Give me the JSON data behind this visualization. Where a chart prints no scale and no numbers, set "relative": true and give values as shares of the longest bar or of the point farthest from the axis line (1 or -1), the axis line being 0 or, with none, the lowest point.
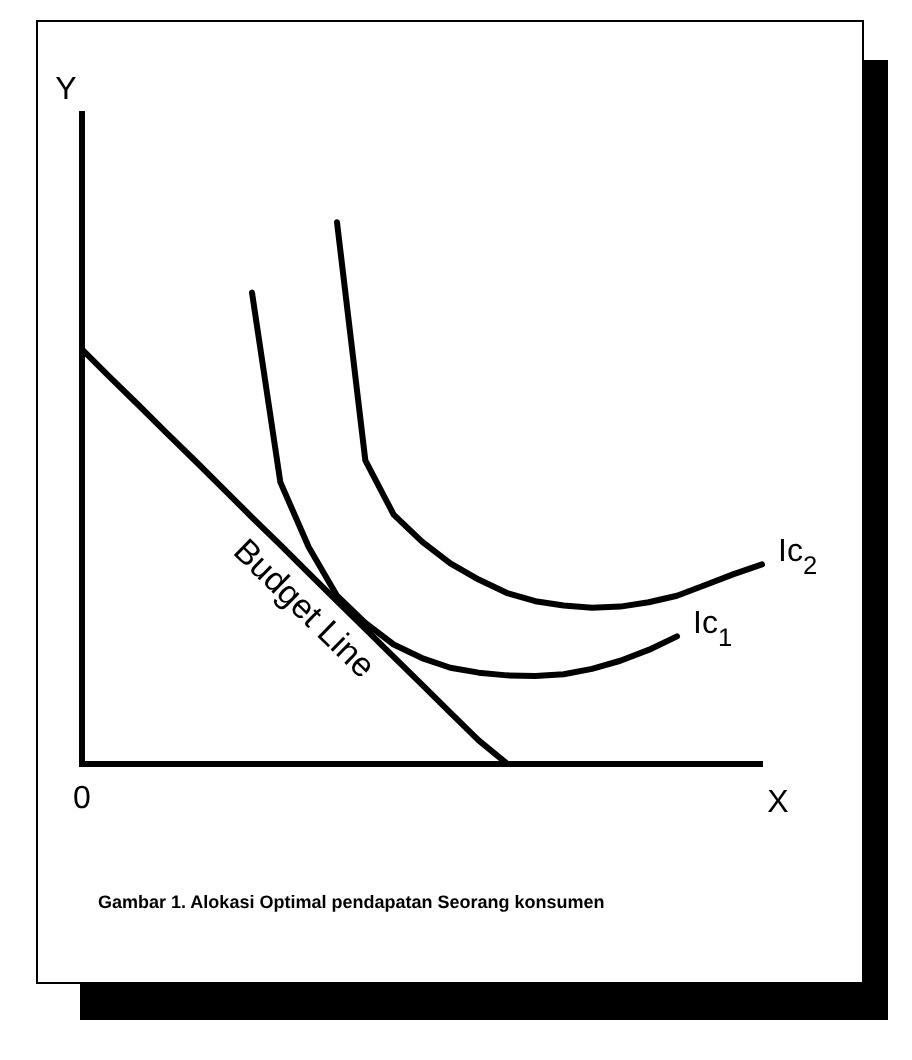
{
  "chart_data": {
    "type": "line",
    "relative": true,
    "xlabel": "X",
    "ylabel": "Y",
    "legend": false,
    "marker": "none",
    "line_style": "solid",
    "annotations": [
      "0",
      "Gambar 1. Alokasi Optimal pendapatan Seorang konsumen"
    ],
    "categories": [
      null,
      null,
      null,
      null,
      null,
      null,
      null,
      null,
      null,
      null,
      null,
      null,
      null,
      null,
      null,
      null,
      null,
      null,
      null,
      null,
      null,
      null,
      null,
      null,
      null
    ],
    "series": [
      {
        "name": "Budget Line",
        "color": "#000000",
        "values": [
          0.765,
          0.713,
          0.662,
          0.61,
          0.559,
          0.507,
          0.455,
          0.404,
          0.352,
          0.3,
          0.249,
          0.197,
          0.146,
          0.094,
          0.043,
          0,
          null,
          null,
          null,
          null,
          null,
          null,
          null,
          null,
          null
        ]
      },
      {
        "name": "Ic$_{1}$",
        "color": "#000000",
        "values": [
          null,
          null,
          null,
          null,
          null,
          null,
          0.87,
          0.52,
          0.4,
          0.31,
          0.26,
          0.22,
          0.195,
          0.177,
          0.168,
          0.163,
          0.162,
          0.165,
          0.175,
          0.19,
          0.21,
          0.235,
          null,
          null,
          null
        ]
      },
      {
        "name": "Ic$_{2}$",
        "color": "#000000",
        "values": [
          null,
          null,
          null,
          null,
          null,
          null,
          null,
          null,
          null,
          1,
          0.56,
          0.46,
          0.41,
          0.37,
          0.34,
          0.315,
          0.3,
          0.292,
          0.288,
          0.29,
          0.298,
          0.31,
          0.33,
          0.35,
          0.368
        ]
      }
    ]
  }
}
